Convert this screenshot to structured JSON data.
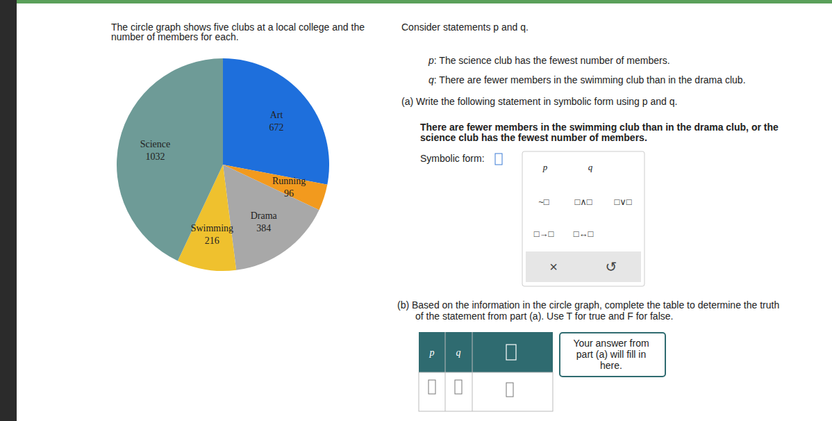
{
  "chart_data": {
    "type": "pie",
    "categories": [
      "Art",
      "Running",
      "Drama",
      "Swimming",
      "Science"
    ],
    "values": [
      672,
      96,
      384,
      216,
      1032
    ],
    "colors": [
      "#1e6fdc",
      "#f29a1e",
      "#a8a8a8",
      "#efc12e",
      "#6e9b97"
    ],
    "data_labels": true
  },
  "intro": [
    "The circle graph shows five clubs at a local college and the",
    "number of members for each."
  ],
  "consider": "Consider statements p and q.",
  "statements": [
    {
      "symbol": "p",
      "text": ": The science club has the fewest number of members."
    },
    {
      "symbol": "q",
      "text": ": There are fewer members in the swimming club than in the drama club."
    }
  ],
  "part_a": {
    "prompt": "(a) Write the following statement in symbolic form using p and q.",
    "statement": [
      "There are fewer members in the swimming club than in the drama club, or the",
      "science club has the fewest number of members."
    ],
    "answer_label": "Symbolic form:"
  },
  "keypad": {
    "variables": [
      "p",
      "q"
    ],
    "operators": [
      "~□",
      "□∧□",
      "□∨□",
      "□→□",
      "□↔□"
    ],
    "actions": [
      "×",
      "↺"
    ]
  },
  "part_b": {
    "prompt": [
      "(b) Based on the information in the circle graph, complete the table to determine the truth",
      "of the statement from part (a). Use T for true and F for false."
    ],
    "table_header": [
      "p",
      "q"
    ],
    "callout": [
      "Your answer from",
      "part (a) will fill in",
      "here."
    ]
  }
}
